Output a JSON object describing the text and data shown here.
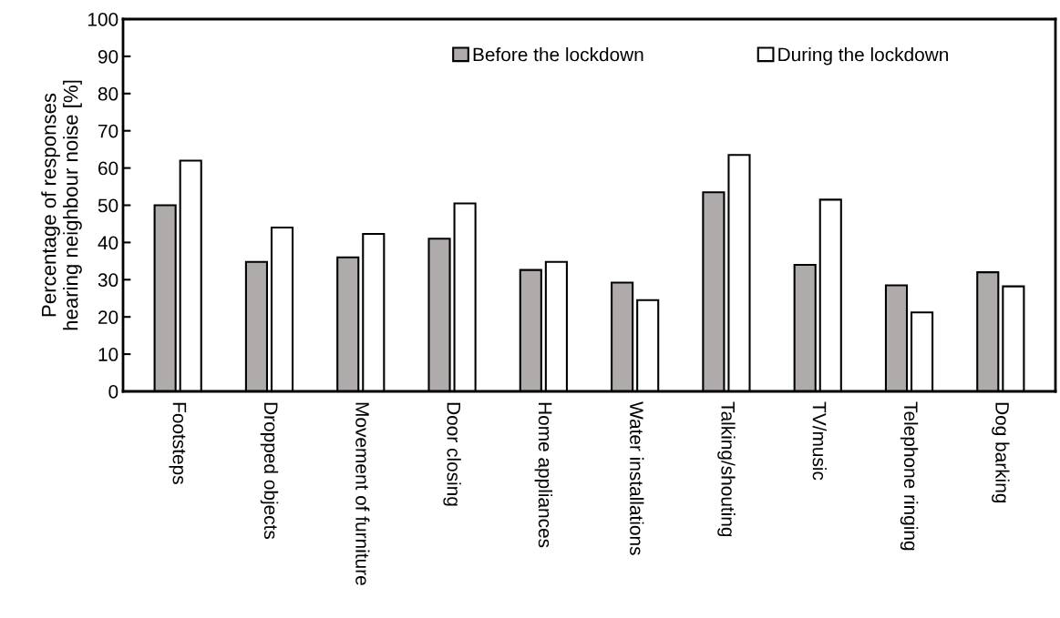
{
  "chart_data": {
    "type": "bar",
    "ylabel": "Percentage of responses\nhearing neighbour noise [%]",
    "categories": [
      "Footsteps",
      "Dropped objects",
      "Movement of furniture",
      "Door closing",
      "Home appliances",
      "Water installations",
      "Talking/shouting",
      "TV/music",
      "Telephone ringing",
      "Dog barking"
    ],
    "series": [
      {
        "name": "Before the lockdown",
        "color": "#afabaa",
        "values": [
          50,
          34.8,
          36,
          41,
          32.6,
          29.2,
          53.5,
          34,
          28.5,
          32
        ]
      },
      {
        "name": "During the lockdown",
        "color": "#ffffff",
        "values": [
          62,
          44,
          42.3,
          50.5,
          34.8,
          24.5,
          63.5,
          51.5,
          21.2,
          28.2
        ]
      }
    ],
    "ylim": [
      0,
      100
    ],
    "yticks": [
      0,
      10,
      20,
      30,
      40,
      50,
      60,
      70,
      80,
      90,
      100
    ],
    "grid": false,
    "legend": "top"
  }
}
